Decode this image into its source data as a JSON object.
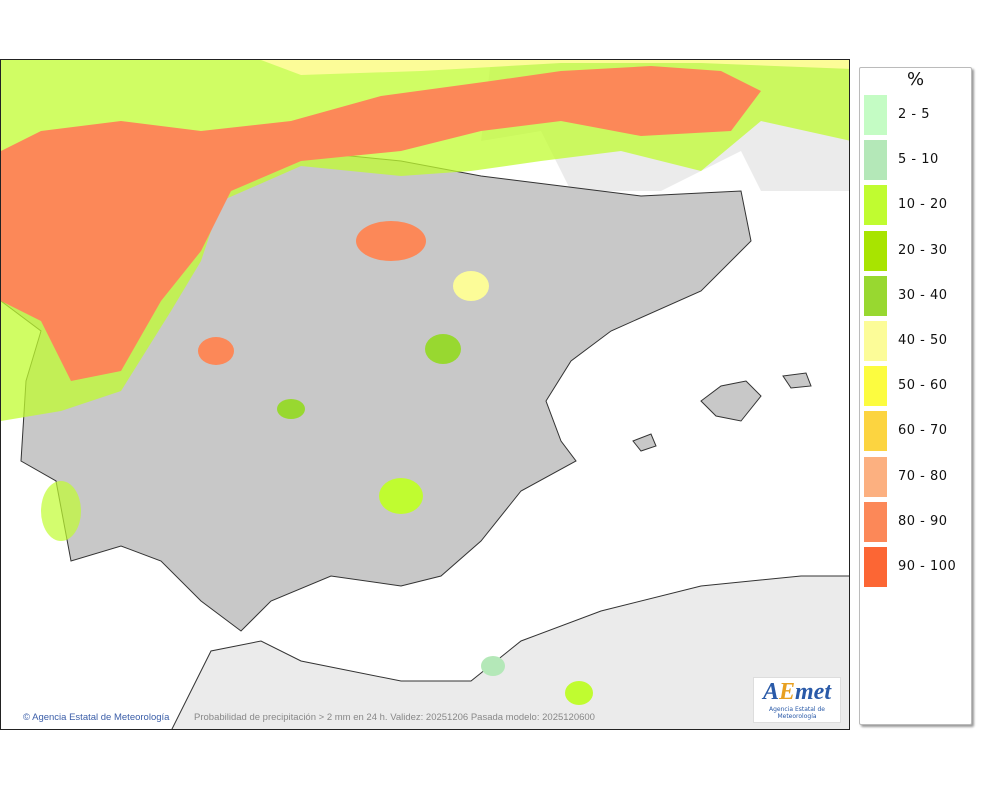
{
  "map": {
    "credit": "Agencia Estatal de Meteorología",
    "caption": "Probabilidad de precipitación > 2 mm en 24 h. Validez: 20251206 Pasada modelo: 2025120600",
    "logo_text": "AEMet",
    "logo_subtext": "Agencia Estatal de Meteorología"
  },
  "legend": {
    "title": "%",
    "items": [
      {
        "label": "2 - 5",
        "color": "#c4fcc4"
      },
      {
        "label": "5 - 10",
        "color": "#b4e8b8"
      },
      {
        "label": "10 - 20",
        "color": "#c0fc30"
      },
      {
        "label": "20 - 30",
        "color": "#a8e400"
      },
      {
        "label": "30 - 40",
        "color": "#98d830"
      },
      {
        "label": "40 - 50",
        "color": "#fcfc98"
      },
      {
        "label": "50 - 60",
        "color": "#fcfc40"
      },
      {
        "label": "60 - 70",
        "color": "#fcd440"
      },
      {
        "label": "70 - 80",
        "color": "#fcb080"
      },
      {
        "label": "80 - 90",
        "color": "#fc8858"
      },
      {
        "label": "90 - 100",
        "color": "#fc6634"
      }
    ]
  }
}
